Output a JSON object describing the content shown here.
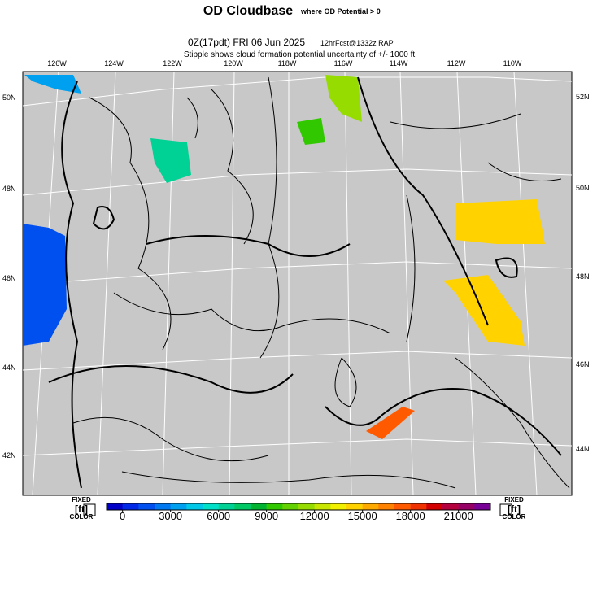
{
  "header": {
    "title": "OD Cloudbase",
    "title_note": "where OD Potential > 0",
    "run": "0Z(17pdt) FRI 06 Jun 2025",
    "forecast": "12hrFcst@1332z RAP",
    "note": "Stipple shows cloud formation potential uncertainty of +/- 1000 ft"
  },
  "map": {
    "lon_labels": [
      "126W",
      "124W",
      "122W",
      "120W",
      "118W",
      "116W",
      "114W",
      "112W",
      "110W"
    ],
    "left_lat_labels": [
      "50N",
      "48N",
      "46N",
      "44N",
      "42N"
    ],
    "right_lat_labels": [
      "52N",
      "50N",
      "48N",
      "46N",
      "44N"
    ]
  },
  "colorbar": {
    "range": [
      -1000,
      23000
    ],
    "ticks": [
      0,
      3000,
      6000,
      9000,
      12000,
      15000,
      18000,
      21000
    ],
    "colors": [
      "#0000c8",
      "#0028e6",
      "#0050f0",
      "#0078f0",
      "#00a0f0",
      "#00c8e6",
      "#00e0c8",
      "#00d296",
      "#00c864",
      "#00b432",
      "#32c800",
      "#64d200",
      "#96dc00",
      "#c8e600",
      "#f0f000",
      "#ffd200",
      "#ffaa00",
      "#ff8200",
      "#ff5a00",
      "#f03200",
      "#d20000",
      "#b4003c",
      "#960064",
      "#780096"
    ],
    "left_labels": [
      "FIXED",
      "[ft]",
      "COLOR"
    ],
    "right_labels": [
      "FIXED",
      "[ft]",
      "COLOR"
    ]
  }
}
